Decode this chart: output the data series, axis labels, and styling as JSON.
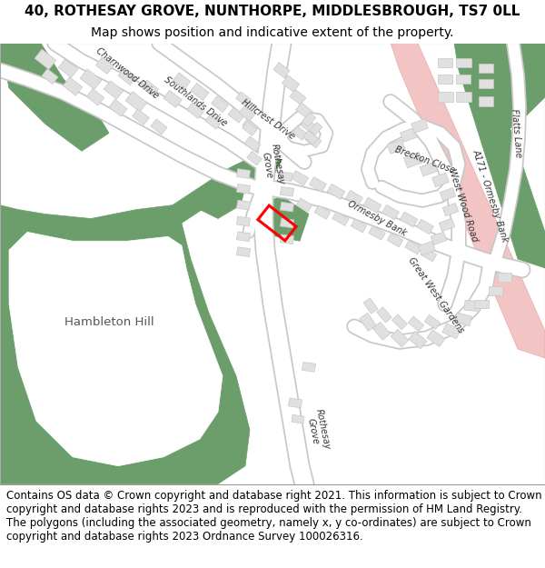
{
  "title_line1": "40, ROTHESAY GROVE, NUNTHORPE, MIDDLESBROUGH, TS7 0LL",
  "title_line2": "Map shows position and indicative extent of the property.",
  "footer_text": "Contains OS data © Crown copyright and database right 2021. This information is subject to Crown copyright and database rights 2023 and is reproduced with the permission of HM Land Registry. The polygons (including the associated geometry, namely x, y co-ordinates) are subject to Crown copyright and database rights 2023 Ordnance Survey 100026316.",
  "bg_map_color": "#ffffff",
  "green_color": "#6b9e6b",
  "pink_road_color": "#f2c4c4",
  "building_color": "#e0e0e0",
  "building_edge_color": "#c8c8c8",
  "property_color": "#ff0000",
  "title_fontsize": 11,
  "subtitle_fontsize": 10,
  "footer_fontsize": 8.5
}
